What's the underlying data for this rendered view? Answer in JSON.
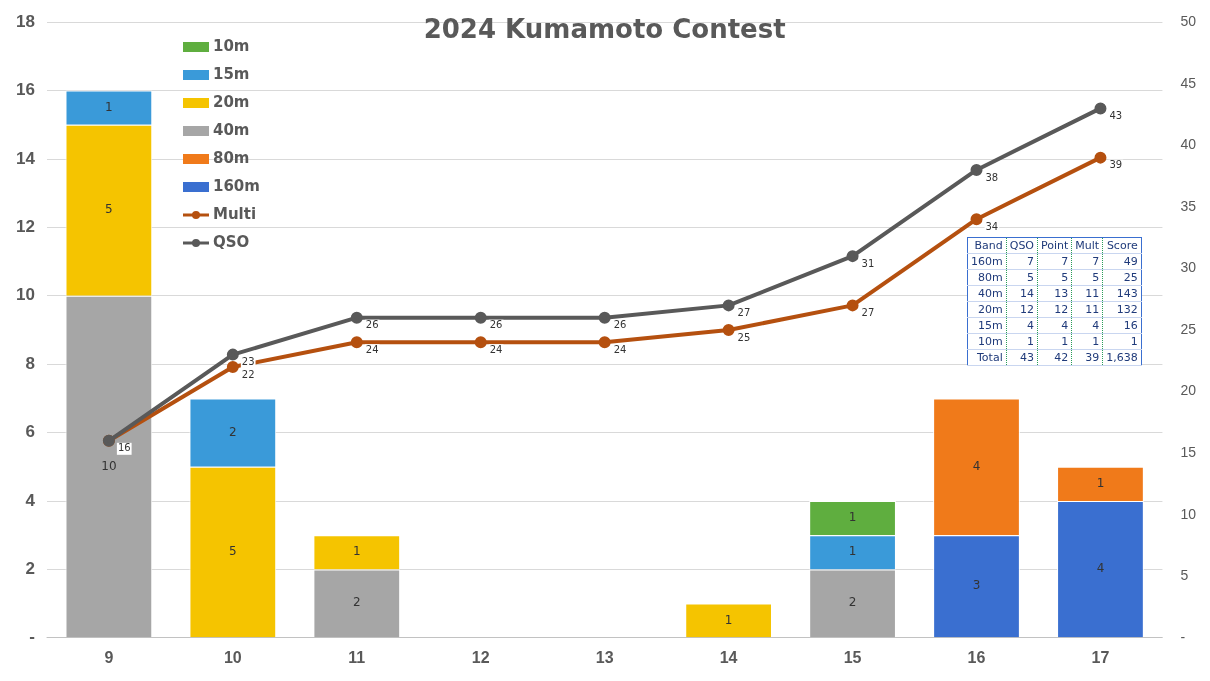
{
  "chart_data": {
    "type": "bar",
    "title": "2024 Kumamoto Contest",
    "categories": [
      "9",
      "10",
      "11",
      "12",
      "13",
      "14",
      "15",
      "16",
      "17"
    ],
    "stacked": true,
    "data_labels": true,
    "grid": "y",
    "legend": "top left",
    "marker": "circle",
    "ylim": [
      0,
      18
    ],
    "yticks": [
      {
        "value": 0,
        "label": "-"
      },
      2,
      4,
      6,
      8,
      10,
      12,
      14,
      16,
      18
    ],
    "y2lim": [
      0,
      50
    ],
    "y2ticks": [
      {
        "value": 0,
        "label": "-"
      },
      5,
      10,
      15,
      20,
      25,
      30,
      35,
      40,
      45,
      50
    ],
    "series": [
      {
        "name": "160m",
        "color": "#3a6fd0",
        "values": [
          null,
          null,
          null,
          null,
          null,
          null,
          null,
          3,
          4
        ]
      },
      {
        "name": "80m",
        "color": "#f07a1a",
        "values": [
          null,
          null,
          null,
          null,
          null,
          null,
          null,
          4,
          1
        ]
      },
      {
        "name": "40m",
        "color": "#a6a6a6",
        "values": [
          10,
          null,
          2,
          null,
          null,
          null,
          2,
          null,
          null
        ]
      },
      {
        "name": "20m",
        "color": "#f5c400",
        "values": [
          5,
          5,
          1,
          null,
          null,
          1,
          null,
          null,
          null
        ]
      },
      {
        "name": "15m",
        "color": "#3a9ad9",
        "values": [
          1,
          2,
          null,
          null,
          null,
          null,
          1,
          null,
          null
        ]
      },
      {
        "name": "10m",
        "color": "#5fae3f",
        "values": [
          null,
          null,
          null,
          null,
          null,
          null,
          1,
          null,
          null
        ]
      },
      {
        "name": "Multi",
        "type": "line",
        "axis": "y2",
        "color": "#b5500f",
        "values": [
          16,
          22,
          24,
          24,
          24,
          25,
          27,
          34,
          39
        ]
      },
      {
        "name": "QSO",
        "type": "line",
        "axis": "y2",
        "color": "#595959",
        "values": [
          16,
          23,
          26,
          26,
          26,
          27,
          31,
          38,
          43
        ],
        "value_labels": [
          null,
          "23",
          "26",
          "26",
          "26",
          "27",
          "31",
          "38",
          "43"
        ]
      }
    ],
    "annotations": [
      "Band",
      "QSO",
      "Point",
      "Mult",
      "Score",
      "160m",
      "7",
      "7",
      "7",
      "49",
      "80m",
      "5",
      "5",
      "5",
      "25",
      "40m",
      "14",
      "13",
      "11",
      "143",
      "20m",
      "12",
      "12",
      "11",
      "132",
      "15m",
      "4",
      "4",
      "4",
      "16",
      "10m",
      "1",
      "1",
      "1",
      "1",
      "Total",
      "43",
      "42",
      "39",
      "1,638"
    ]
  }
}
